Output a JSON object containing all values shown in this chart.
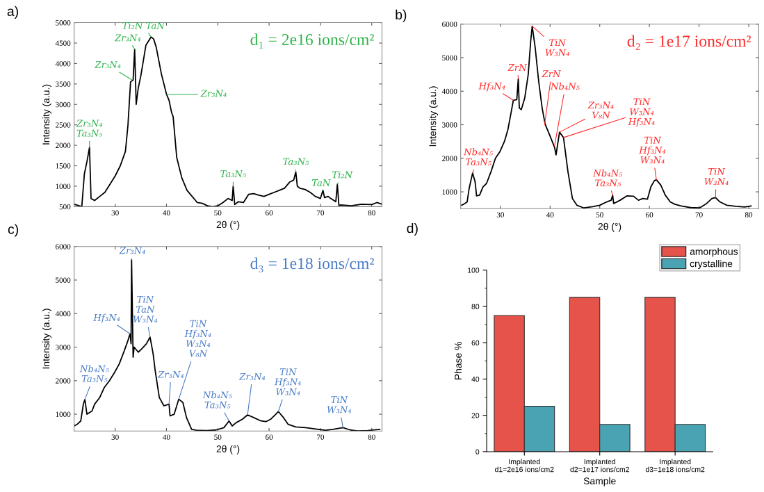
{
  "chart_data": [
    {
      "type": "line",
      "title": "a)",
      "xlabel": "2θ (°)",
      "ylabel": "Intensity (a.u.)",
      "xlim": [
        22,
        82
      ],
      "xticks": [
        30,
        40,
        50,
        60,
        70,
        80
      ],
      "ylim": [
        500,
        5000
      ],
      "yticks": [
        500,
        1000,
        1500,
        2000,
        2500,
        3000,
        3500,
        4000,
        4500,
        5000
      ],
      "series": [
        {
          "color": "#000000",
          "x": [
            22,
            23,
            23.5,
            24,
            24.5,
            25,
            25.3,
            26,
            27,
            28,
            29,
            30,
            31,
            32,
            32.5,
            33,
            33.5,
            33.8,
            34.1,
            34.5,
            35,
            36,
            37,
            37.5,
            38,
            39,
            40,
            40.5,
            41,
            41.3,
            42,
            43,
            44,
            45,
            46,
            47,
            48,
            49,
            50,
            51,
            52,
            52.8,
            53,
            53.3,
            54,
            55,
            56,
            57,
            58,
            59,
            60,
            61,
            62,
            63,
            64,
            64.8,
            65.2,
            65.5,
            66,
            67,
            68,
            69,
            70,
            70.5,
            70.8,
            71.5,
            72,
            73,
            73.3,
            73.6,
            74,
            76,
            78,
            80,
            81,
            82
          ],
          "values": [
            560,
            520,
            500,
            1300,
            1600,
            1950,
            700,
            650,
            750,
            850,
            1050,
            1250,
            1500,
            1850,
            2500,
            3550,
            3600,
            4350,
            3000,
            3400,
            3700,
            4450,
            4650,
            4600,
            4400,
            3750,
            3250,
            3100,
            2800,
            2700,
            1700,
            1200,
            900,
            750,
            600,
            580,
            520,
            500,
            520,
            600,
            700,
            650,
            1000,
            550,
            620,
            600,
            800,
            820,
            780,
            750,
            800,
            850,
            900,
            950,
            1100,
            1150,
            1350,
            1000,
            950,
            920,
            850,
            750,
            700,
            900,
            720,
            750,
            700,
            620,
            1050,
            530,
            540,
            520,
            560,
            550,
            600,
            560
          ]
        }
      ],
      "annotations": [
        "d₁ = 2e16 ions/cm²",
        {
          "text": "Ti₂N TaN",
          "x": 37,
          "y": 4650
        },
        {
          "text": "Zr₃N₄",
          "x": 33.8,
          "y": 4350
        },
        {
          "text": "Zr₃N₄",
          "x": 33.3,
          "y": 3600
        },
        {
          "text": "Zr₃N₄",
          "x": 40,
          "y": 3250
        },
        {
          "text": "Zr₃N₄\nTa₃N₅",
          "x": 25,
          "y": 1950
        },
        {
          "text": "Ta₃N₅",
          "x": 53,
          "y": 1000
        },
        {
          "text": "Ta₃N₅",
          "x": 65.2,
          "y": 1350
        },
        {
          "text": "TaN",
          "x": 70.5,
          "y": 900
        },
        {
          "text": "Ti₂N",
          "x": 73.3,
          "y": 1050
        }
      ]
    },
    {
      "type": "line",
      "title": "b)",
      "xlabel": "2θ (°)",
      "ylabel": "Intensity (a.u.)",
      "xlim": [
        22,
        82
      ],
      "xticks": [
        30,
        40,
        50,
        60,
        70,
        80
      ],
      "ylim": [
        500,
        6000
      ],
      "yticks": [
        1000,
        2000,
        3000,
        4000,
        5000,
        6000
      ],
      "series": [
        {
          "color": "#000000",
          "x": [
            22.2,
            22.8,
            23.3,
            23.7,
            24.4,
            24.9,
            25.2,
            25.8,
            26.5,
            27.2,
            28.1,
            29,
            29.9,
            30.8,
            31.5,
            32.2,
            32.6,
            33.3,
            33.6,
            33.8,
            34.2,
            34.9,
            35.6,
            36.1,
            36.4,
            37,
            37.7,
            38.4,
            39,
            40,
            40.9,
            41.2,
            41.9,
            42.7,
            43.6,
            44.5,
            45.4,
            46.8,
            48.6,
            50,
            51.4,
            52.3,
            52.6,
            52.8,
            54.1,
            55.5,
            56.8,
            57.8,
            58.7,
            59.6,
            60.3,
            61,
            61.4,
            62.3,
            63.2,
            64.2,
            65.1,
            66.4,
            68.3,
            70.1,
            71.5,
            72.6,
            73.3,
            74.2,
            75.6,
            77.4,
            79.2,
            80.5
          ],
          "values": [
            600,
            650,
            700,
            1100,
            1560,
            1300,
            880,
            900,
            1150,
            1250,
            1600,
            2000,
            2200,
            2500,
            2850,
            3400,
            3730,
            3750,
            4370,
            3500,
            3450,
            3800,
            4500,
            5500,
            5940,
            5300,
            4300,
            3500,
            3020,
            2660,
            2330,
            2100,
            2780,
            2620,
            1600,
            800,
            600,
            520,
            560,
            600,
            700,
            750,
            900,
            650,
            750,
            880,
            870,
            750,
            800,
            780,
            1150,
            1330,
            1360,
            1200,
            900,
            700,
            630,
            580,
            530,
            520,
            650,
            800,
            830,
            700,
            600,
            570,
            550,
            580
          ]
        }
      ],
      "annotations": [
        "d₂ = 1e17 ions/cm²",
        {
          "text": "TiN\nW₃N₄",
          "x": 36.4,
          "y": 5940
        },
        {
          "text": "ZrN",
          "x": 33.6,
          "y": 4370
        },
        {
          "text": "Hf₃N₄",
          "x": 32.6,
          "y": 3730
        },
        {
          "text": "ZrN",
          "x": 38.9,
          "y": 3000
        },
        {
          "text": "Nb₄N₅",
          "x": 40.9,
          "y": 2370
        },
        {
          "text": "Zr₃N₄\nV₈N",
          "x": 41.9,
          "y": 2780
        },
        {
          "text": "TiN\nW₃N₄\nHf₃N₄",
          "x": 42.7,
          "y": 2620
        },
        {
          "text": "Nb₄N₅\nTa₃N₅",
          "x": 52.6,
          "y": 900
        },
        {
          "text": "TiN\nHf₃N₄\nW₃N₄",
          "x": 61.4,
          "y": 1360
        },
        {
          "text": "TiN\nW₃N₄",
          "x": 73.3,
          "y": 830
        },
        {
          "text": "Nb₄N₅\nTa₃N₅",
          "x": 24.4,
          "y": 1560
        }
      ]
    },
    {
      "type": "line",
      "title": "c)",
      "xlabel": "2θ (°)",
      "ylabel": "Intensity (a.u.)",
      "xlim": [
        22,
        82
      ],
      "xticks": [
        30,
        40,
        50,
        60,
        70,
        80
      ],
      "ylim": [
        500,
        6000
      ],
      "yticks": [
        1000,
        2000,
        3000,
        4000,
        5000,
        6000
      ],
      "series": [
        {
          "color": "#000000",
          "x": [
            22,
            22.6,
            23.3,
            23.8,
            24.1,
            24.5,
            25,
            25.5,
            26,
            27,
            27.9,
            28.9,
            29.9,
            30.8,
            31.8,
            32.5,
            32.9,
            33.1,
            33.2,
            33.5,
            33.7,
            34.5,
            35.2,
            36.1,
            36.8,
            37.4,
            37.8,
            38.6,
            39.5,
            40.5,
            40.7,
            41.5,
            42.4,
            43.2,
            43.9,
            44.9,
            45.8,
            47.8,
            49.7,
            51.2,
            52.2,
            52.8,
            53.6,
            54.8,
            55.8,
            57,
            58.4,
            59.4,
            60.3,
            61.3,
            61.8,
            62.8,
            63.7,
            65.2,
            67.1,
            69.1,
            71,
            72.4,
            74.4,
            75.8,
            77.3,
            79.2,
            81.6
          ],
          "values": [
            650,
            700,
            800,
            1300,
            1440,
            1000,
            1050,
            1100,
            1300,
            1500,
            1800,
            2000,
            2250,
            2500,
            2900,
            3200,
            3400,
            3100,
            5600,
            2700,
            3000,
            2850,
            2950,
            3100,
            3300,
            2800,
            2300,
            1500,
            1250,
            1300,
            950,
            1000,
            1450,
            1350,
            900,
            550,
            520,
            510,
            530,
            600,
            800,
            650,
            750,
            850,
            980,
            900,
            800,
            780,
            850,
            1000,
            1080,
            900,
            700,
            620,
            600,
            560,
            520,
            550,
            600,
            530,
            500,
            510,
            550
          ]
        }
      ],
      "annotations": [
        "d₃ = 1e18 ions/cm²",
        {
          "text": "Zr₃N₄",
          "x": 33.2,
          "y": 5600
        },
        {
          "text": "Hf₃N₄",
          "x": 32.9,
          "y": 3400
        },
        {
          "text": "TiN\nTaN\nW₃N₄",
          "x": 36.8,
          "y": 3300
        },
        {
          "text": "Zr₃N₄",
          "x": 40.5,
          "y": 1300
        },
        {
          "text": "TiN\nHf₃N₄\nW₃N₄\nV₈N",
          "x": 42.4,
          "y": 1450
        },
        {
          "text": "Nb₄N₅\nTa₃N₅",
          "x": 24.1,
          "y": 1440
        },
        {
          "text": "Nb₄N₅\nTa₃N₅",
          "x": 52.2,
          "y": 800
        },
        {
          "text": "Zr₃N₄",
          "x": 55.8,
          "y": 980
        },
        {
          "text": "TiN\nHf₃N₄\nW₃N₄",
          "x": 61.8,
          "y": 1080
        },
        {
          "text": "TiN\nW₃N₄",
          "x": 74.4,
          "y": 600
        }
      ]
    },
    {
      "type": "bar",
      "title": "d)",
      "xlabel": "Sample",
      "ylabel": "Phase %",
      "ylim": [
        0,
        100
      ],
      "yticks": [
        0,
        20,
        40,
        60,
        80,
        100
      ],
      "legend": "top right",
      "categories": [
        "Implanted\nd1=2e16 ions/cm2",
        "Implanted\nd2=1e17 ions/cm2",
        "Implanted\nd3=1e18 ions/cm2"
      ],
      "series": [
        {
          "name": "amorphous",
          "color": "#e5534b",
          "values": [
            75,
            85,
            85
          ]
        },
        {
          "name": "crystalline",
          "color": "#4aa3b3",
          "values": [
            25,
            15,
            15
          ]
        }
      ]
    }
  ]
}
